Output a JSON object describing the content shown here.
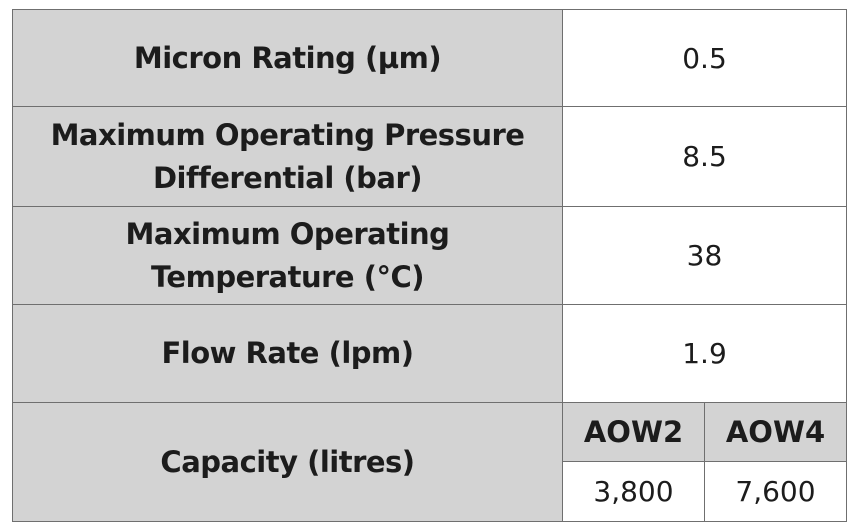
{
  "rows": [
    {
      "label": "Micron Rating (µm)",
      "value": "0.5"
    },
    {
      "label": "Maximum Operating Pressure Differential (bar)",
      "value": "8.5"
    },
    {
      "label": "Maximum Operating Temperature (°C)",
      "value": "38"
    },
    {
      "label": "Flow Rate (lpm)",
      "value": "1.9"
    }
  ],
  "capacity": {
    "label": "Capacity (litres)",
    "models": [
      {
        "name": "AOW2",
        "value": "3,800"
      },
      {
        "name": "AOW4",
        "value": "7,600"
      }
    ]
  }
}
